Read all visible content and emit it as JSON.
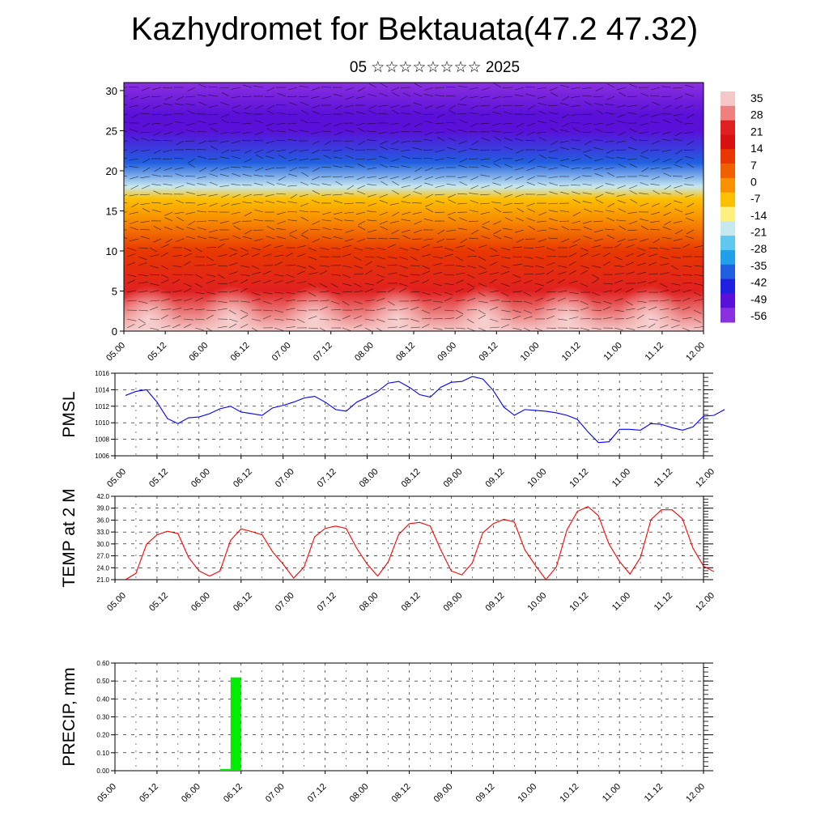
{
  "title": "Kazhydromet for Bektauata(47.2 47.32)",
  "subtitle": "05 ☆☆☆☆☆☆☆☆ 2025",
  "time_ticks": [
    "05.00",
    "05.12",
    "06.00",
    "06.12",
    "07.00",
    "07.12",
    "08.00",
    "08.12",
    "09.00",
    "09.12",
    "10.00",
    "10.12",
    "11.00",
    "11.12",
    "12.00"
  ],
  "chart_data": [
    {
      "type": "heatmap",
      "name": "temperature-wind-cross-section",
      "ylim": [
        0,
        31
      ],
      "yticks": [
        0,
        5,
        10,
        15,
        20,
        25,
        30
      ],
      "colorbar_labels": [
        "35",
        "28",
        "21",
        "14",
        "7",
        "0",
        "-7",
        "-14",
        "-21",
        "-28",
        "-35",
        "-42",
        "-49",
        "-56"
      ],
      "colorbar_colors": [
        "#f5c8c8",
        "#f08080",
        "#e02020",
        "#d81010",
        "#e83800",
        "#f06000",
        "#f89000",
        "#fcc000",
        "#fff080",
        "#c8e8f0",
        "#60c8f0",
        "#20a0e8",
        "#2060e0",
        "#2020e0",
        "#5a10d8",
        "#8a30e0"
      ],
      "levels": [
        {
          "z": 0,
          "t": 32
        },
        {
          "z": 5,
          "t": 22
        },
        {
          "z": 10,
          "t": 10
        },
        {
          "z": 14,
          "t": 0
        },
        {
          "z": 16.5,
          "t": -8
        },
        {
          "z": 18,
          "t": -25
        },
        {
          "z": 21,
          "t": -38
        },
        {
          "z": 25,
          "t": -56
        },
        {
          "z": 27,
          "t": -52
        },
        {
          "z": 31,
          "t": -60
        }
      ],
      "warm_cores_x": [
        0.3,
        1.3,
        2.3,
        3.3,
        4.35,
        5.35,
        6.35
      ]
    },
    {
      "type": "line",
      "name": "pmsl",
      "ylabel": "PMSL",
      "ylim": [
        1006,
        1016
      ],
      "yticks": [
        "1006",
        "1008",
        "1010",
        "1012",
        "1014",
        "1016"
      ],
      "color": "#0000ff",
      "x_step_days": 0.125,
      "values": [
        1013.3,
        1013.8,
        1014.0,
        1012.5,
        1010.5,
        1009.9,
        1010.6,
        1010.7,
        1011.1,
        1011.7,
        1012.0,
        1011.3,
        1011.1,
        1010.9,
        1011.8,
        1012.1,
        1012.5,
        1013.0,
        1013.2,
        1012.5,
        1011.6,
        1011.4,
        1012.5,
        1013.1,
        1013.8,
        1014.8,
        1015.0,
        1014.3,
        1013.4,
        1013.1,
        1014.3,
        1014.9,
        1015.0,
        1015.6,
        1015.3,
        1013.9,
        1011.9,
        1010.9,
        1011.6,
        1011.5,
        1011.4,
        1011.2,
        1010.9,
        1010.4,
        1008.9,
        1007.6,
        1007.7,
        1009.2,
        1009.2,
        1009.1,
        1009.9,
        1009.8,
        1009.4,
        1009.1,
        1009.5,
        1010.8,
        1010.9,
        1011.6
      ]
    },
    {
      "type": "line",
      "name": "temp-2m",
      "ylabel": "TEMP at 2 M",
      "ylim": [
        21,
        42
      ],
      "yticks": [
        "21.0",
        "24.0",
        "27.0",
        "30.0",
        "33.0",
        "36.0",
        "39.0",
        "42.0"
      ],
      "color": "#ff0000",
      "x_step_days": 0.125,
      "values": [
        21.0,
        22.6,
        29.9,
        32.3,
        33.2,
        32.6,
        26.6,
        23.2,
        21.9,
        23.2,
        30.9,
        33.8,
        33.1,
        32.3,
        28.0,
        24.9,
        21.4,
        24.2,
        31.8,
        33.9,
        34.5,
        33.9,
        28.9,
        24.9,
        21.9,
        25.5,
        32.4,
        35.1,
        35.4,
        34.5,
        28.5,
        23.2,
        22.2,
        25.2,
        32.8,
        35.1,
        36.2,
        35.5,
        28.5,
        24.6,
        21.0,
        24.2,
        33.5,
        38.2,
        39.4,
        37.1,
        30.0,
        25.6,
        22.4,
        26.6,
        36.1,
        38.6,
        38.6,
        36.3,
        28.9,
        24.4,
        23.0
      ]
    },
    {
      "type": "bar",
      "name": "precip",
      "ylabel": "PRECIP, mm",
      "ylim": [
        0,
        0.6
      ],
      "yticks": [
        "0.00",
        "0.10",
        "0.20",
        "0.30",
        "0.40",
        "0.50",
        "0.60"
      ],
      "color": "#00ee00",
      "bars": [
        {
          "x_days": 1.25,
          "width_days": 0.125,
          "value": 0.01
        },
        {
          "x_days": 1.375,
          "width_days": 0.125,
          "value": 0.52
        }
      ]
    }
  ]
}
